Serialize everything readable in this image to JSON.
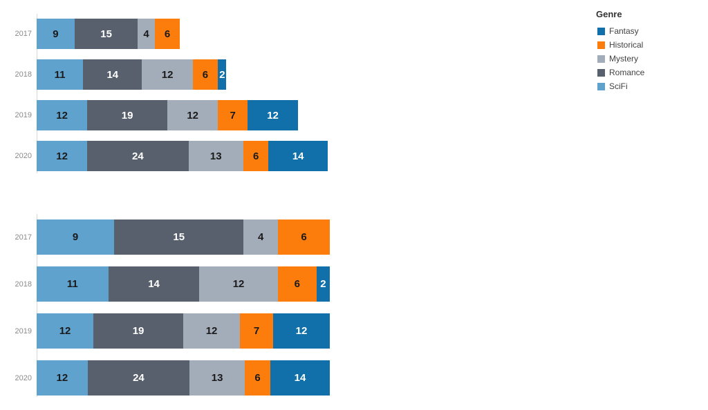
{
  "legend": {
    "title": "Genre",
    "items": [
      {
        "label": "Fantasy",
        "color": "#1170aa"
      },
      {
        "label": "Historical",
        "color": "#fc7d0b"
      },
      {
        "label": "Mystery",
        "color": "#a3acb9"
      },
      {
        "label": "Romance",
        "color": "#57606c"
      },
      {
        "label": "SciFi",
        "color": "#5fa2ce"
      }
    ]
  },
  "chart_data": [
    {
      "type": "bar",
      "orientation": "horizontal",
      "stacking": "stacked",
      "title": "",
      "categories": [
        "2017",
        "2018",
        "2019",
        "2020"
      ],
      "series": [
        {
          "name": "SciFi",
          "color": "#5fa2ce",
          "values": [
            9,
            11,
            12,
            12
          ]
        },
        {
          "name": "Romance",
          "color": "#57606c",
          "values": [
            15,
            14,
            19,
            24
          ]
        },
        {
          "name": "Mystery",
          "color": "#a3acb9",
          "values": [
            4,
            12,
            12,
            13
          ]
        },
        {
          "name": "Historical",
          "color": "#fc7d0b",
          "values": [
            6,
            6,
            7,
            6
          ]
        },
        {
          "name": "Fantasy",
          "color": "#1170aa",
          "values": [
            0,
            2,
            12,
            14
          ]
        }
      ],
      "row_totals": [
        34,
        45,
        62,
        69
      ],
      "xlim": [
        0,
        69
      ],
      "data_labels": true,
      "grid": false,
      "legend_position": "right"
    },
    {
      "type": "bar",
      "orientation": "horizontal",
      "stacking": "percent",
      "title": "",
      "categories": [
        "2017",
        "2018",
        "2019",
        "2020"
      ],
      "series": [
        {
          "name": "SciFi",
          "color": "#5fa2ce",
          "values": [
            9,
            11,
            12,
            12
          ]
        },
        {
          "name": "Romance",
          "color": "#57606c",
          "values": [
            15,
            14,
            19,
            24
          ]
        },
        {
          "name": "Mystery",
          "color": "#a3acb9",
          "values": [
            4,
            12,
            12,
            13
          ]
        },
        {
          "name": "Historical",
          "color": "#fc7d0b",
          "values": [
            6,
            6,
            7,
            6
          ]
        },
        {
          "name": "Fantasy",
          "color": "#1170aa",
          "values": [
            0,
            2,
            12,
            14
          ]
        }
      ],
      "row_totals": [
        34,
        45,
        62,
        69
      ],
      "xlim": [
        0,
        100
      ],
      "data_labels": true,
      "grid": false,
      "legend_position": "right"
    }
  ]
}
